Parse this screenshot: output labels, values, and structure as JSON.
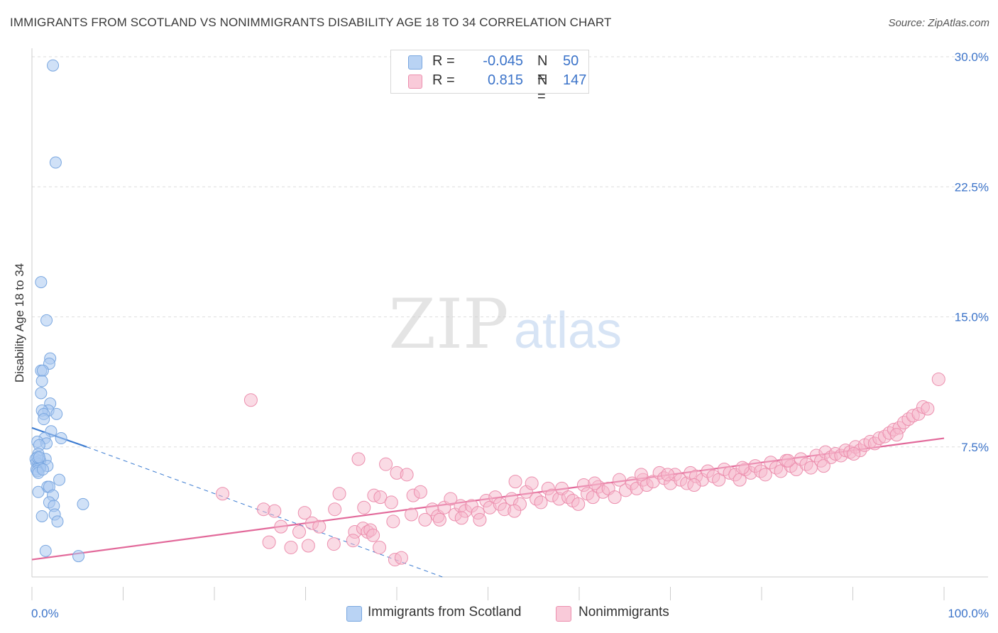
{
  "title": "IMMIGRANTS FROM SCOTLAND VS NONIMMIGRANTS DISABILITY AGE 18 TO 34 CORRELATION CHART",
  "source": "Source: ZipAtlas.com",
  "watermark": {
    "zip": "ZIP",
    "atlas": "atlas"
  },
  "legend": {
    "r_label": "R =",
    "n_label": "N =",
    "series1": {
      "r": "-0.045",
      "n": "50"
    },
    "series2": {
      "r": "0.815",
      "n": "147"
    }
  },
  "bottom_legend": {
    "series1": "Immigrants from Scotland",
    "series2": "Nonimmigrants"
  },
  "colors": {
    "blue_fill": "#a9c8f0",
    "blue_stroke": "#7aa7e0",
    "blue_line": "#3b7bd1",
    "pink_fill": "#f6b8cc",
    "pink_stroke": "#ec8fae",
    "pink_line": "#e2699a",
    "grid": "#dedede",
    "tick_label": "#3b73c9"
  },
  "chart_data": {
    "type": "scatter",
    "title": "IMMIGRANTS FROM SCOTLAND VS NONIMMIGRANTS DISABILITY AGE 18 TO 34 CORRELATION CHART",
    "xlabel": "",
    "ylabel": "Disability Age 18 to 34",
    "xlim": [
      0,
      100
    ],
    "ylim": [
      0,
      30
    ],
    "x_tick_labels": [
      "0.0%",
      "100.0%"
    ],
    "y_ticks": [
      7.5,
      15.0,
      22.5,
      30.0
    ],
    "y_tick_labels": [
      "7.5%",
      "15.0%",
      "22.5%",
      "30.0%"
    ],
    "series": [
      {
        "name": "Immigrants from Scotland",
        "r": -0.045,
        "n": 50,
        "trend": {
          "x0": 0,
          "y0": 8.6,
          "x1": 6,
          "y1": 7.5,
          "dashed_to_x": 45,
          "dashed_to_y": 0
        },
        "points": [
          [
            2.3,
            29.5
          ],
          [
            2.6,
            23.9
          ],
          [
            1.0,
            17.0
          ],
          [
            1.6,
            14.8
          ],
          [
            2.0,
            12.6
          ],
          [
            1.9,
            12.3
          ],
          [
            1.0,
            11.9
          ],
          [
            1.2,
            11.9
          ],
          [
            1.1,
            11.3
          ],
          [
            1.0,
            10.6
          ],
          [
            2.0,
            10.0
          ],
          [
            1.8,
            9.6
          ],
          [
            1.1,
            9.6
          ],
          [
            1.3,
            9.4
          ],
          [
            2.7,
            9.4
          ],
          [
            1.3,
            9.1
          ],
          [
            2.1,
            8.4
          ],
          [
            1.4,
            8.0
          ],
          [
            3.2,
            8.0
          ],
          [
            0.6,
            7.8
          ],
          [
            1.6,
            7.7
          ],
          [
            0.8,
            7.6
          ],
          [
            0.7,
            7.1
          ],
          [
            0.4,
            6.8
          ],
          [
            1.5,
            6.8
          ],
          [
            0.9,
            6.7
          ],
          [
            0.5,
            6.6
          ],
          [
            0.7,
            6.5
          ],
          [
            0.8,
            6.4
          ],
          [
            1.7,
            6.4
          ],
          [
            0.9,
            6.3
          ],
          [
            0.5,
            6.2
          ],
          [
            0.6,
            6.1
          ],
          [
            0.7,
            6.0
          ],
          [
            3.0,
            5.6
          ],
          [
            1.7,
            5.2
          ],
          [
            1.9,
            5.2
          ],
          [
            0.7,
            4.9
          ],
          [
            2.3,
            4.7
          ],
          [
            1.9,
            4.3
          ],
          [
            2.4,
            4.1
          ],
          [
            5.6,
            4.2
          ],
          [
            2.5,
            3.6
          ],
          [
            1.1,
            3.5
          ],
          [
            2.8,
            3.2
          ],
          [
            1.5,
            1.5
          ],
          [
            5.1,
            1.2
          ],
          [
            0.6,
            6.9
          ],
          [
            0.8,
            6.9
          ],
          [
            1.2,
            6.2
          ]
        ]
      },
      {
        "name": "Nonimmigrants",
        "r": 0.815,
        "n": 147,
        "trend": {
          "x0": 0,
          "y0": 1.0,
          "x1": 100,
          "y1": 8.0
        },
        "points": [
          [
            24.0,
            10.2
          ],
          [
            35.8,
            6.8
          ],
          [
            38.8,
            6.5
          ],
          [
            40.0,
            6.0
          ],
          [
            20.9,
            4.8
          ],
          [
            25.4,
            3.9
          ],
          [
            26.6,
            3.8
          ],
          [
            27.3,
            2.9
          ],
          [
            26.0,
            2.0
          ],
          [
            28.4,
            1.7
          ],
          [
            29.3,
            2.6
          ],
          [
            29.9,
            3.7
          ],
          [
            30.7,
            3.1
          ],
          [
            31.5,
            2.9
          ],
          [
            33.1,
            1.9
          ],
          [
            30.3,
            1.8
          ],
          [
            33.7,
            4.8
          ],
          [
            33.2,
            3.9
          ],
          [
            35.4,
            2.6
          ],
          [
            36.3,
            2.8
          ],
          [
            36.8,
            2.6
          ],
          [
            35.2,
            2.1
          ],
          [
            36.4,
            4.0
          ],
          [
            37.1,
            2.7
          ],
          [
            38.1,
            1.7
          ],
          [
            37.4,
            2.4
          ],
          [
            39.8,
            1.0
          ],
          [
            37.5,
            4.7
          ],
          [
            38.2,
            4.6
          ],
          [
            39.6,
            3.2
          ],
          [
            40.5,
            1.1
          ],
          [
            41.1,
            5.9
          ],
          [
            41.8,
            4.7
          ],
          [
            41.6,
            3.6
          ],
          [
            42.6,
            4.9
          ],
          [
            43.1,
            3.3
          ],
          [
            43.9,
            3.9
          ],
          [
            44.5,
            3.5
          ],
          [
            45.2,
            4.0
          ],
          [
            46.4,
            3.6
          ],
          [
            47.0,
            4.1
          ],
          [
            47.5,
            3.8
          ],
          [
            47.1,
            3.4
          ],
          [
            48.2,
            4.1
          ],
          [
            48.9,
            3.7
          ],
          [
            49.1,
            3.3
          ],
          [
            49.8,
            4.4
          ],
          [
            50.2,
            4.0
          ],
          [
            50.8,
            4.6
          ],
          [
            51.3,
            4.2
          ],
          [
            51.8,
            3.9
          ],
          [
            52.6,
            4.5
          ],
          [
            53.5,
            4.2
          ],
          [
            52.9,
            3.8
          ],
          [
            54.2,
            4.9
          ],
          [
            54.8,
            5.4
          ],
          [
            55.3,
            4.5
          ],
          [
            55.8,
            4.3
          ],
          [
            56.6,
            5.1
          ],
          [
            57.0,
            4.7
          ],
          [
            57.8,
            4.5
          ],
          [
            58.1,
            5.1
          ],
          [
            58.8,
            4.6
          ],
          [
            59.3,
            4.4
          ],
          [
            59.9,
            4.2
          ],
          [
            60.5,
            5.3
          ],
          [
            60.9,
            4.8
          ],
          [
            61.5,
            4.6
          ],
          [
            62.1,
            5.2
          ],
          [
            62.6,
            4.9
          ],
          [
            63.2,
            5.1
          ],
          [
            63.9,
            4.6
          ],
          [
            64.4,
            5.6
          ],
          [
            65.1,
            5.0
          ],
          [
            65.8,
            5.4
          ],
          [
            66.3,
            5.1
          ],
          [
            67.0,
            5.6
          ],
          [
            67.4,
            5.3
          ],
          [
            68.1,
            5.5
          ],
          [
            68.8,
            6.0
          ],
          [
            69.3,
            5.7
          ],
          [
            70.0,
            5.4
          ],
          [
            70.5,
            5.9
          ],
          [
            71.1,
            5.6
          ],
          [
            71.8,
            5.4
          ],
          [
            72.2,
            6.0
          ],
          [
            72.8,
            5.8
          ],
          [
            73.5,
            5.6
          ],
          [
            74.1,
            6.1
          ],
          [
            74.7,
            5.8
          ],
          [
            75.3,
            5.6
          ],
          [
            75.9,
            6.2
          ],
          [
            76.5,
            6.0
          ],
          [
            77.1,
            5.9
          ],
          [
            77.6,
            5.6
          ],
          [
            78.2,
            6.2
          ],
          [
            78.8,
            6.0
          ],
          [
            79.3,
            6.4
          ],
          [
            79.9,
            6.1
          ],
          [
            80.4,
            5.9
          ],
          [
            81.0,
            6.6
          ],
          [
            81.6,
            6.3
          ],
          [
            82.1,
            6.1
          ],
          [
            82.7,
            6.7
          ],
          [
            83.2,
            6.4
          ],
          [
            83.8,
            6.2
          ],
          [
            84.3,
            6.8
          ],
          [
            84.9,
            6.5
          ],
          [
            85.4,
            6.3
          ],
          [
            86.0,
            7.0
          ],
          [
            86.5,
            6.7
          ],
          [
            87.0,
            7.2
          ],
          [
            87.6,
            6.9
          ],
          [
            88.1,
            7.1
          ],
          [
            88.7,
            7.0
          ],
          [
            89.2,
            7.3
          ],
          [
            89.7,
            7.2
          ],
          [
            90.3,
            7.5
          ],
          [
            90.8,
            7.3
          ],
          [
            91.3,
            7.6
          ],
          [
            91.9,
            7.8
          ],
          [
            92.4,
            7.7
          ],
          [
            92.9,
            8.0
          ],
          [
            93.5,
            8.1
          ],
          [
            94.0,
            8.3
          ],
          [
            94.5,
            8.5
          ],
          [
            95.1,
            8.6
          ],
          [
            95.6,
            8.9
          ],
          [
            96.1,
            9.1
          ],
          [
            96.6,
            9.3
          ],
          [
            97.2,
            9.4
          ],
          [
            97.7,
            9.8
          ],
          [
            98.2,
            9.7
          ],
          [
            99.4,
            11.4
          ],
          [
            39.4,
            4.3
          ],
          [
            44.7,
            3.3
          ],
          [
            53.0,
            5.5
          ],
          [
            61.7,
            5.4
          ],
          [
            66.8,
            5.9
          ],
          [
            72.6,
            5.3
          ],
          [
            77.9,
            6.3
          ],
          [
            82.9,
            6.7
          ],
          [
            86.8,
            6.4
          ],
          [
            90.1,
            7.1
          ],
          [
            94.8,
            8.2
          ],
          [
            45.9,
            4.5
          ],
          [
            69.7,
            5.9
          ]
        ]
      }
    ]
  }
}
